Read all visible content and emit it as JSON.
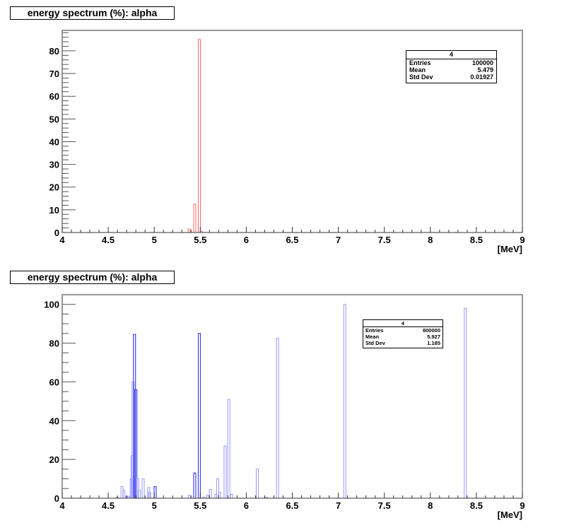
{
  "panels": [
    {
      "title": "energy spectrum (%): alpha",
      "stats": {
        "header": "4",
        "rows": [
          {
            "label": "Entries",
            "value": "100000"
          },
          {
            "label": "Mean",
            "value": "5.479"
          },
          {
            "label": "Std Dev",
            "value": "0.01927"
          }
        ]
      },
      "xaxis_unit": "[MeV]",
      "xticks": [
        "4",
        "4.5",
        "5",
        "5.5",
        "6",
        "6.5",
        "7",
        "7.5",
        "8",
        "8.5",
        "9"
      ],
      "yticks": [
        "0",
        "10",
        "20",
        "30",
        "40",
        "50",
        "60",
        "70",
        "80"
      ],
      "line_color": "#ff6666"
    },
    {
      "title": "energy spectrum (%): alpha",
      "stats": {
        "header": "4",
        "rows": [
          {
            "label": "Entries",
            "value": "800000"
          },
          {
            "label": "Mean",
            "value": "5.927"
          },
          {
            "label": "Std Dev",
            "value": "1.185"
          }
        ]
      },
      "xaxis_unit": "[MeV]",
      "xticks": [
        "4",
        "4.5",
        "5",
        "5.5",
        "6",
        "6.5",
        "7",
        "7.5",
        "8",
        "8.5",
        "9"
      ],
      "yticks": [
        "0",
        "20",
        "40",
        "60",
        "80",
        "100"
      ],
      "line_color": "#9999ff",
      "strong_color": "#4444ee"
    }
  ],
  "chart_data": [
    {
      "type": "bar",
      "title": "energy spectrum (%): alpha",
      "xlabel": "[MeV]",
      "ylabel": "",
      "xlim": [
        4,
        9
      ],
      "ylim": [
        0,
        89
      ],
      "grid": false,
      "color": "#ff6666",
      "x": [
        5.38,
        5.44,
        5.49,
        5.51
      ],
      "values": [
        1.5,
        12.5,
        85,
        0.5
      ],
      "stats": {
        "Entries": 100000,
        "Mean": 5.479,
        "Std Dev": 0.01927
      }
    },
    {
      "type": "bar",
      "title": "energy spectrum (%): alpha",
      "xlabel": "[MeV]",
      "ylabel": "",
      "xlim": [
        4,
        9
      ],
      "ylim": [
        0,
        105
      ],
      "grid": false,
      "color": "#9999ff",
      "x": [
        4.6,
        4.65,
        4.67,
        4.7,
        4.72,
        4.75,
        4.76,
        4.77,
        4.785,
        4.8,
        4.82,
        4.84,
        4.88,
        4.94,
        4.95,
        5.01,
        5.38,
        5.44,
        5.49,
        5.54,
        5.58,
        5.61,
        5.67,
        5.69,
        5.71,
        5.77,
        5.81,
        5.84,
        6.12,
        6.22,
        6.34,
        7.07,
        8.38
      ],
      "values": [
        0.5,
        6,
        4,
        1,
        1,
        10,
        22,
        60,
        84.5,
        56,
        10,
        4,
        10,
        5.5,
        3,
        6,
        1.5,
        13,
        85,
        0.5,
        1.5,
        4.5,
        2,
        10,
        3,
        27,
        51,
        2,
        15,
        0.5,
        82.5,
        100,
        98
      ],
      "stats": {
        "Entries": 800000,
        "Mean": 5.927,
        "Std Dev": 1.185
      }
    }
  ]
}
